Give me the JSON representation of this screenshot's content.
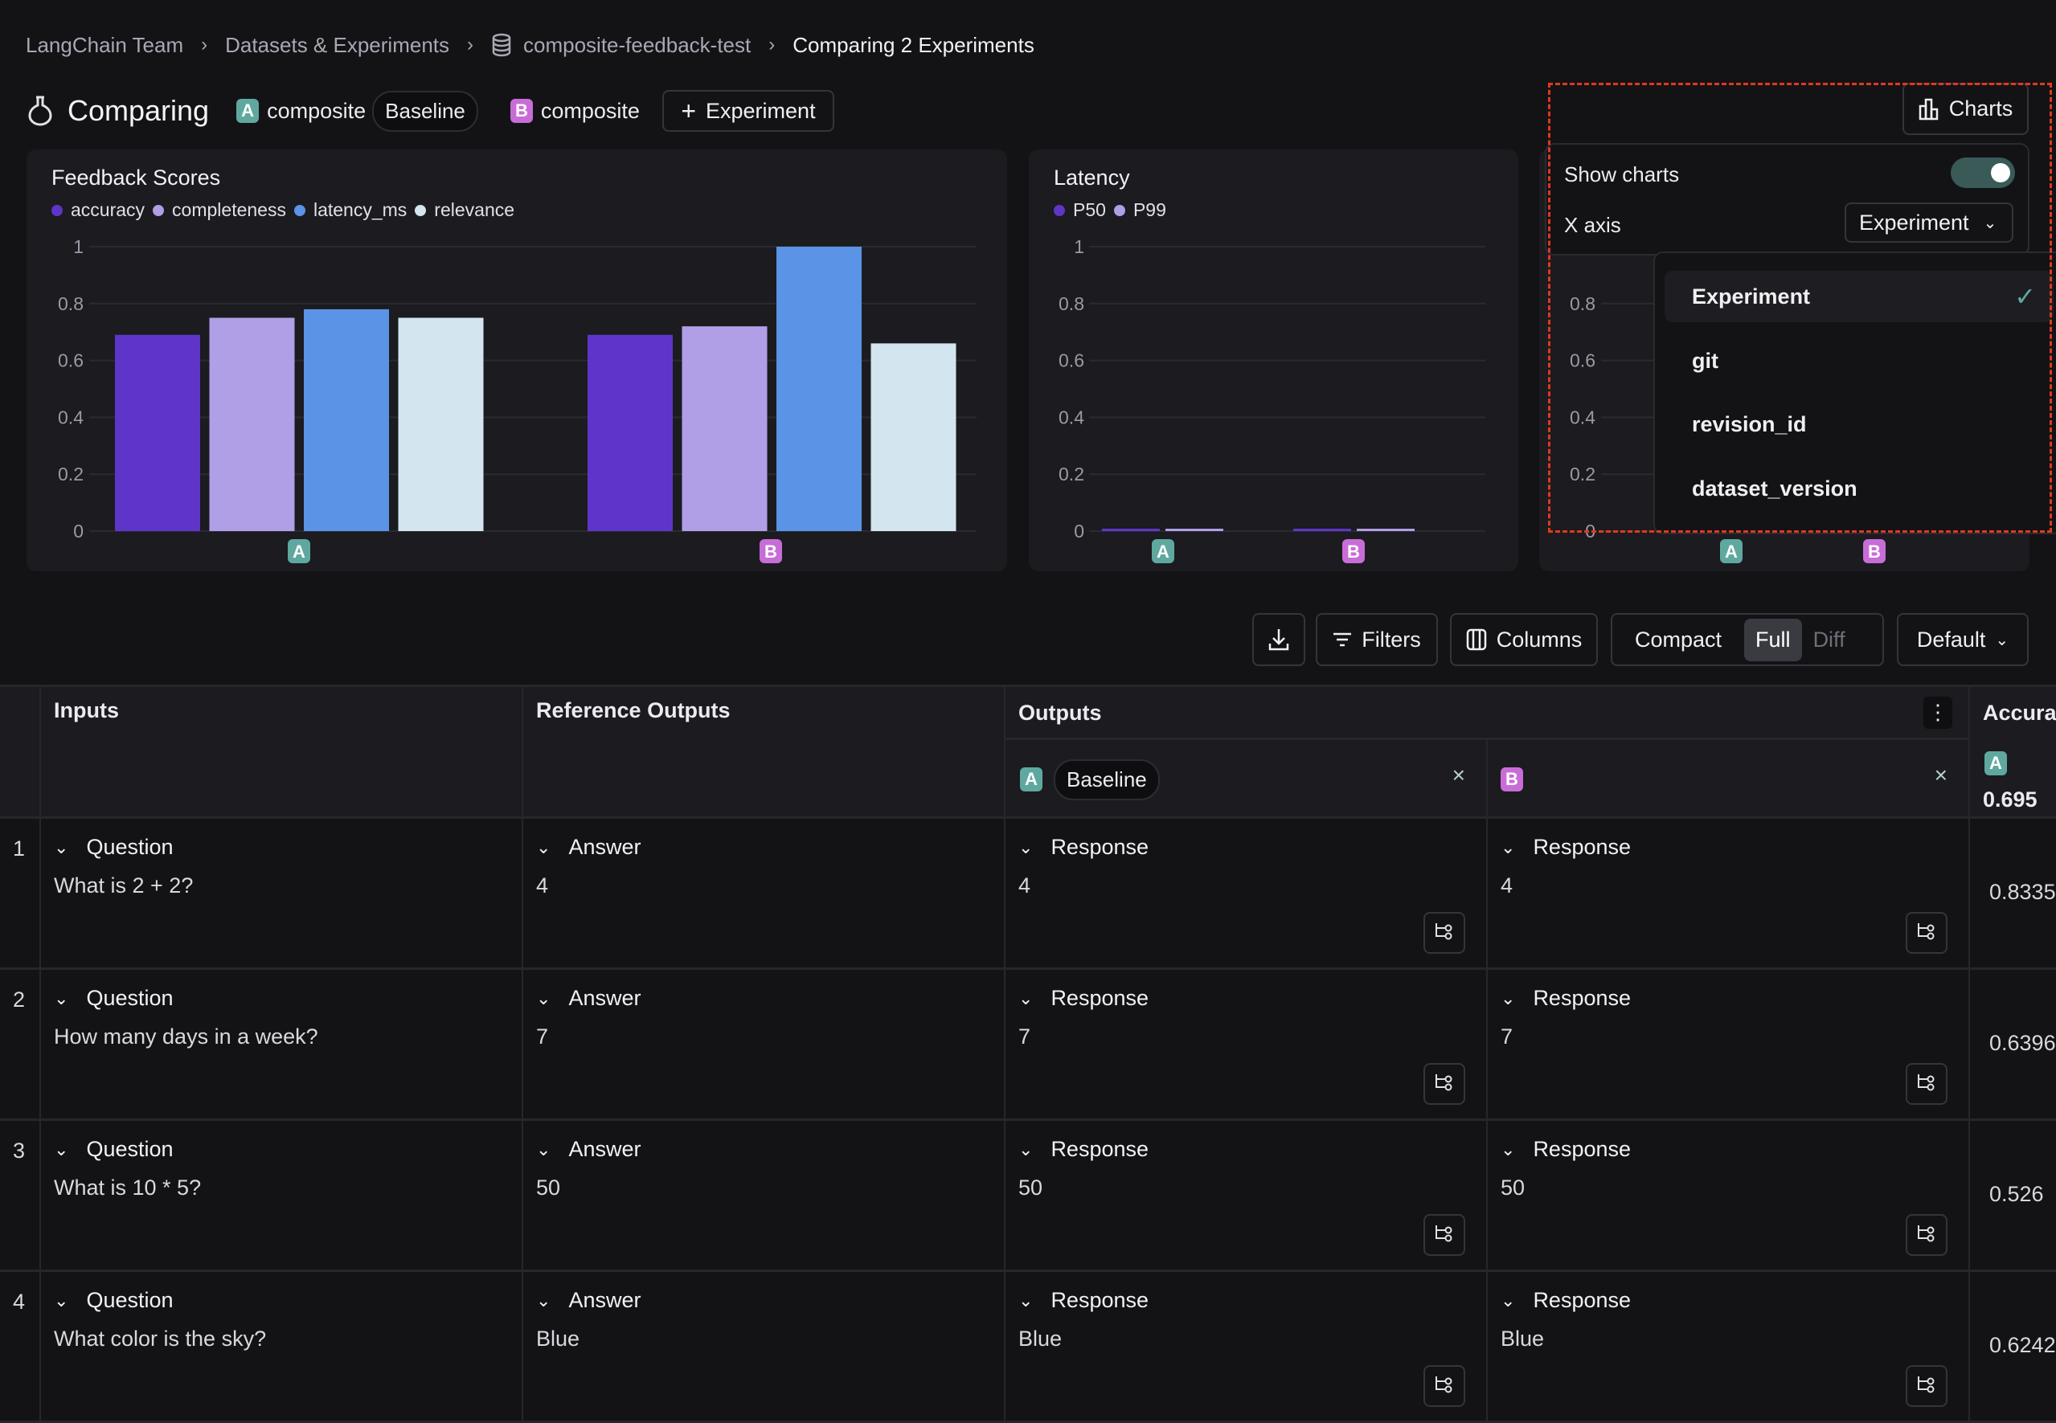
{
  "breadcrumb": [
    "LangChain Team",
    "Datasets & Experiments",
    "composite-feedback-test",
    "Comparing 2 Experiments"
  ],
  "header": {
    "title": "Comparing",
    "experiment_a": {
      "badge": "A",
      "name": "composite",
      "tag": "Baseline"
    },
    "experiment_b": {
      "badge": "B",
      "name": "composite"
    },
    "add_experiment": "Experiment"
  },
  "colors": {
    "badge_a": "#5fa8a0",
    "badge_b": "#c86dd7",
    "accuracy": "#5f35c9",
    "completeness": "#b09ee6",
    "latency_ms": "#5b93e6",
    "relevance": "#d3e5ef",
    "P50": "#5f35c9",
    "P99": "#b09ee6",
    "highlight": "#e0381d"
  },
  "chart_data": [
    {
      "type": "bar",
      "title": "Feedback Scores",
      "categories": [
        "A",
        "B"
      ],
      "ylim": [
        0,
        1
      ],
      "yticks": [
        "0",
        "0.2",
        "0.4",
        "0.6",
        "0.8",
        "1"
      ],
      "grid": true,
      "legend": "top-left",
      "series": [
        {
          "name": "accuracy",
          "values": [
            0.69,
            0.69
          ]
        },
        {
          "name": "completeness",
          "values": [
            0.75,
            0.72
          ]
        },
        {
          "name": "latency_ms",
          "values": [
            0.78,
            1.0
          ]
        },
        {
          "name": "relevance",
          "values": [
            0.75,
            0.66
          ]
        }
      ]
    },
    {
      "type": "bar",
      "title": "Latency",
      "categories": [
        "A",
        "B"
      ],
      "ylim": [
        0,
        1
      ],
      "yticks": [
        "0",
        "0.2",
        "0.4",
        "0.6",
        "0.8",
        "1"
      ],
      "grid": true,
      "legend": "top-left",
      "series": [
        {
          "name": "P50",
          "values": [
            0.005,
            0.005
          ]
        },
        {
          "name": "P99",
          "values": [
            0.002,
            0.008
          ]
        }
      ]
    },
    {
      "type": "bar",
      "categories": [
        "A",
        "B"
      ],
      "ylim": [
        0,
        1
      ],
      "yticks": [
        "0",
        "0.2",
        "0.4",
        "0.6",
        "0.8"
      ],
      "grid": true,
      "series": []
    }
  ],
  "charts_button": "Charts",
  "chart_settings": {
    "show_charts_label": "Show charts",
    "show_charts": true,
    "x_axis_label": "X axis",
    "x_axis_value": "Experiment",
    "options": [
      "Experiment",
      "git",
      "revision_id",
      "dataset_version"
    ],
    "selected_option": "Experiment"
  },
  "toolbar": {
    "filters": "Filters",
    "columns": "Columns",
    "view_modes": [
      "Compact",
      "Full",
      "Diff"
    ],
    "active_view": "Full",
    "sort": "Default"
  },
  "table": {
    "headers": {
      "inputs": "Inputs",
      "reference": "Reference Outputs",
      "outputs": "Outputs",
      "accuracy": "Accuracy"
    },
    "output_a": {
      "badge": "A",
      "tag": "Baseline"
    },
    "output_b": {
      "badge": "B"
    },
    "accuracy_summary": {
      "badge": "A",
      "value": "0.695"
    },
    "input_label": "Question",
    "reference_label": "Answer",
    "output_label": "Response",
    "rows": [
      {
        "n": "1",
        "question": "What is 2 + 2?",
        "answer": "4",
        "a": "4",
        "b": "4",
        "accuracy": "0.8335"
      },
      {
        "n": "2",
        "question": "How many days in a week?",
        "answer": "7",
        "a": "7",
        "b": "7",
        "accuracy": "0.6396"
      },
      {
        "n": "3",
        "question": "What is 10 * 5?",
        "answer": "50",
        "a": "50",
        "b": "50",
        "accuracy": "0.526"
      },
      {
        "n": "4",
        "question": "What color is the sky?",
        "answer": "Blue",
        "a": "Blue",
        "b": "Blue",
        "accuracy": "0.6242"
      }
    ]
  }
}
